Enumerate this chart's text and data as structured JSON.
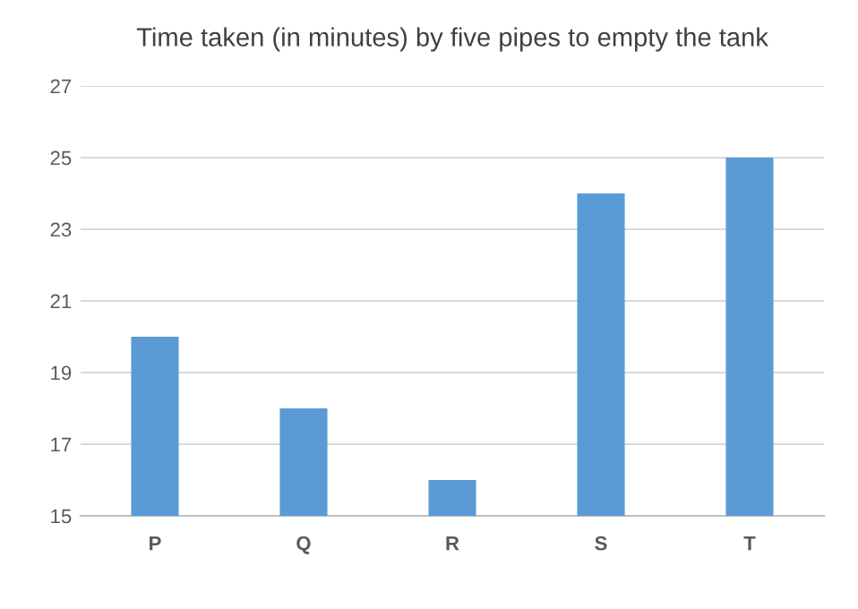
{
  "chart_data": {
    "type": "bar",
    "title": "Time taken (in minutes) by five pipes to empty the tank",
    "categories": [
      "P",
      "Q",
      "R",
      "S",
      "T"
    ],
    "values": [
      20,
      18,
      16,
      24,
      25
    ],
    "color": "#5b9bd5",
    "ylim": [
      15,
      27
    ],
    "yticks": [
      15,
      17,
      19,
      21,
      23,
      25,
      27
    ],
    "grid": "y"
  }
}
